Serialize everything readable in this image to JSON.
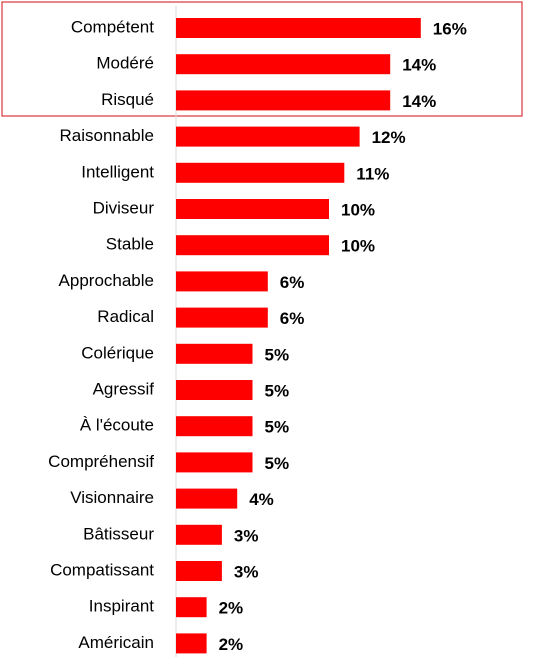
{
  "chart_data": {
    "type": "bar",
    "orientation": "horizontal",
    "categories": [
      "Compétent",
      "Modéré",
      "Risqué",
      "Raisonnable",
      "Intelligent",
      "Diviseur",
      "Stable",
      "Approchable",
      "Radical",
      "Colérique",
      "Agressif",
      "À l'écoute",
      "Compréhensif",
      "Visionnaire",
      "Bâtisseur",
      "Compatissant",
      "Inspirant",
      "Américain"
    ],
    "values": [
      16,
      14,
      14,
      12,
      11,
      10,
      10,
      6,
      6,
      5,
      5,
      5,
      5,
      4,
      3,
      3,
      2,
      2
    ],
    "value_labels": [
      "16%",
      "14%",
      "14%",
      "12%",
      "11%",
      "10%",
      "10%",
      "6%",
      "6%",
      "5%",
      "5%",
      "5%",
      "5%",
      "4%",
      "3%",
      "3%",
      "2%",
      "2%"
    ],
    "color": "#ff0000"
  }
}
